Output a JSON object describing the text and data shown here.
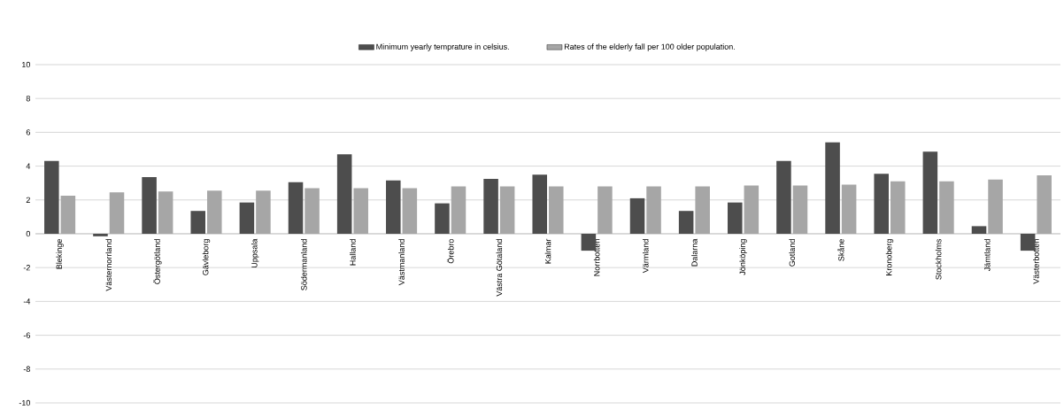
{
  "chart_data": {
    "type": "bar",
    "categories": [
      "Blekinge",
      "Västernorrland",
      "Östergötland",
      "Gävleborg",
      "Uppsala",
      "Södermanland",
      "Halland",
      "Västmanland",
      "Örebro",
      "Västra Götaland",
      "Kalmar",
      "Norrbotten",
      "Värmland",
      "Dalarna",
      "Jönköping",
      "Gotland",
      "Skåne",
      "Kronoberg",
      "Stockholms",
      "Jämtland",
      "Västerbotten"
    ],
    "series": [
      {
        "name": "Minimum yearly temprature in celsius.",
        "color": "#4d4d4d",
        "values": [
          4.3,
          -0.15,
          3.35,
          1.35,
          1.85,
          3.05,
          4.7,
          3.15,
          1.8,
          3.25,
          3.5,
          -1.0,
          2.1,
          1.35,
          1.85,
          4.3,
          5.4,
          3.55,
          4.85,
          0.45,
          -1.0
        ]
      },
      {
        "name": "Rates of the elderly fall per 100 older population.",
        "color": "#a6a6a6",
        "values": [
          2.25,
          2.45,
          2.5,
          2.55,
          2.55,
          2.7,
          2.7,
          2.7,
          2.8,
          2.8,
          2.8,
          2.8,
          2.8,
          2.8,
          2.85,
          2.85,
          2.9,
          3.1,
          3.1,
          3.2,
          3.45
        ]
      }
    ],
    "ylim": [
      -10,
      10
    ],
    "yticks": [
      -10,
      -8,
      -6,
      -4,
      -2,
      0,
      2,
      4,
      6,
      8,
      10
    ],
    "grid": "y",
    "legend": "top"
  }
}
